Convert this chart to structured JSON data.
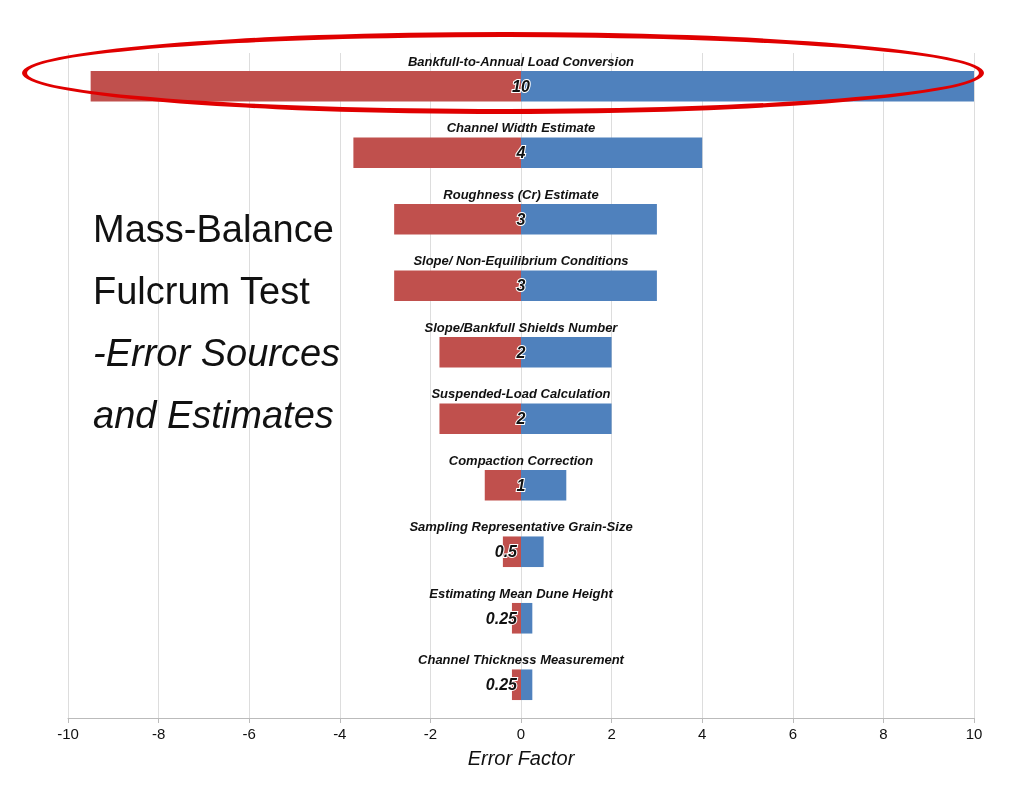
{
  "chart_data": {
    "type": "bar",
    "orientation": "horizontal",
    "title": "Mass-Balance Fulcrum Test",
    "subtitle": "-Error Sources and Estimates",
    "xlabel": "Error Factor",
    "categories": [
      "Bankfull-to-Annual Load Conversion",
      "Channel Width Estimate",
      "Roughness (Cr) Estimate",
      "Slope/ Non-Equilibrium Conditions",
      "Slope/Bankfull Shields Number",
      "Suspended-Load Calculation",
      "Compaction Correction",
      "Sampling Representative Grain-Size",
      "Estimating Mean Dune Height",
      "Channel Thickness Measurement"
    ],
    "series": [
      {
        "color": "#c0504d",
        "values": [
          -9.5,
          -3.7,
          -2.8,
          -2.8,
          -1.8,
          -1.8,
          -0.8,
          -0.4,
          -0.2,
          -0.2
        ]
      },
      {
        "color": "#4f81bd",
        "values": [
          10,
          4,
          3,
          3,
          2,
          2,
          1,
          0.5,
          0.25,
          0.25
        ],
        "value_labels": [
          "10",
          "4",
          "3",
          "3",
          "2",
          "2",
          "1",
          "0.5",
          "0.25",
          "0.25"
        ]
      }
    ],
    "xlim": [
      -10,
      10
    ],
    "xticks": [
      -10,
      -8,
      -6,
      -4,
      -2,
      0,
      2,
      4,
      6,
      8,
      10
    ],
    "grid": "x",
    "stacked": true
  }
}
